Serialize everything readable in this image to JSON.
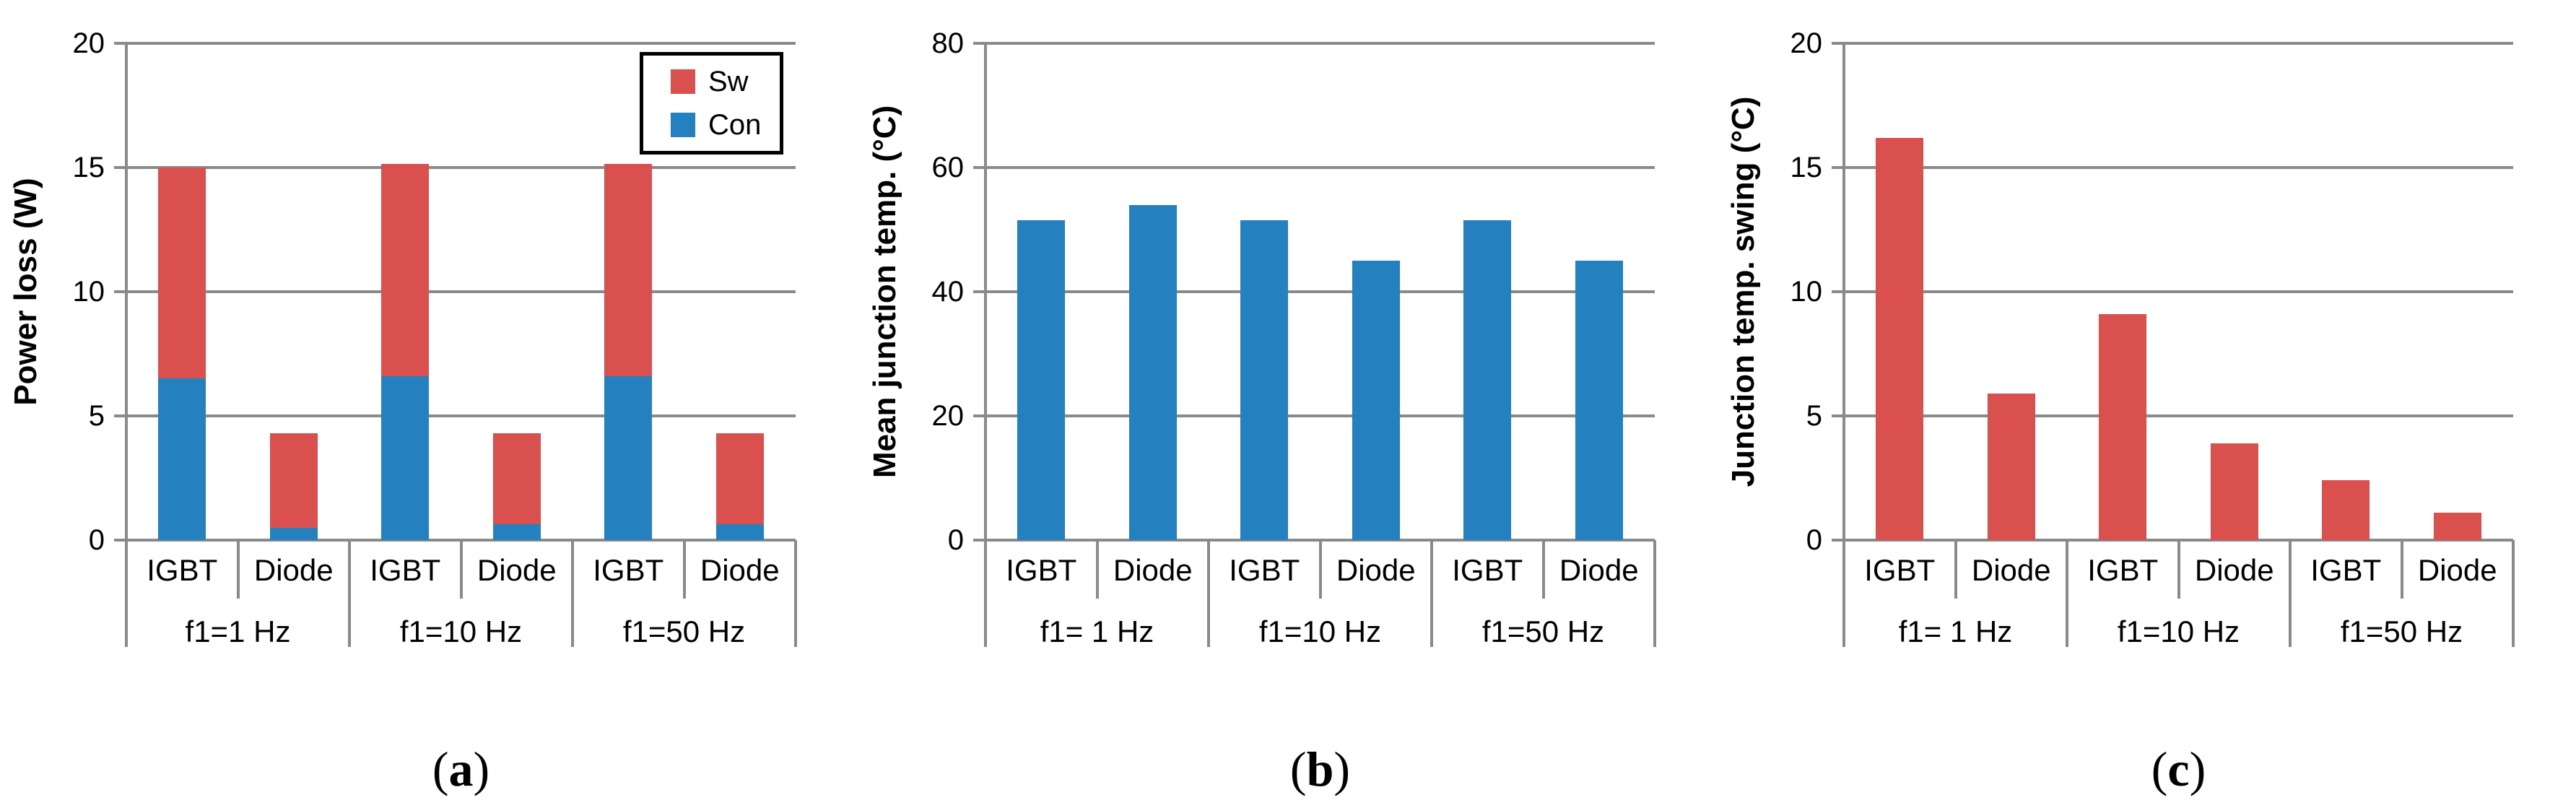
{
  "colors": {
    "sw_red": "#DA504E",
    "con_blue": "#2580C0",
    "grid_gray": "#8A8A8A",
    "text_black": "#000000"
  },
  "chart_data": [
    {
      "id": "a",
      "type": "bar",
      "stacked": true,
      "ylabel": "Power loss (W)",
      "ylim": [
        0,
        20
      ],
      "yticks": [
        0,
        5,
        10,
        15,
        20
      ],
      "grid": true,
      "categories": [
        "IGBT",
        "Diode",
        "IGBT",
        "Diode",
        "IGBT",
        "Diode"
      ],
      "group_labels": [
        "f1=1 Hz",
        "f1=10 Hz",
        "f1=50 Hz"
      ],
      "series": [
        {
          "name": "Con",
          "color_key": "con_blue",
          "values": [
            6.5,
            0.5,
            6.6,
            0.65,
            6.6,
            0.65
          ]
        },
        {
          "name": "Sw",
          "color_key": "sw_red",
          "values": [
            8.5,
            3.8,
            8.55,
            3.65,
            8.55,
            3.65
          ]
        }
      ],
      "legend": {
        "position": "top-right",
        "entries": [
          {
            "label": "Sw",
            "color_key": "sw_red"
          },
          {
            "label": "Con",
            "color_key": "con_blue"
          }
        ]
      },
      "caption": {
        "pre": "(",
        "letter": "a",
        "post": ")"
      }
    },
    {
      "id": "b",
      "type": "bar",
      "stacked": false,
      "ylabel": "Mean junction temp. (°C)",
      "ylim": [
        0,
        80
      ],
      "yticks": [
        0,
        20,
        40,
        60,
        80
      ],
      "grid": true,
      "categories": [
        "IGBT",
        "Diode",
        "IGBT",
        "Diode",
        "IGBT",
        "Diode"
      ],
      "group_labels": [
        "f1= 1 Hz",
        "f1=10 Hz",
        "f1=50 Hz"
      ],
      "series": [
        {
          "name": "Mean junction temp.",
          "color_key": "con_blue",
          "values": [
            51.5,
            54,
            51.5,
            45,
            51.5,
            45
          ]
        }
      ],
      "caption": {
        "pre": "(",
        "letter": "b",
        "post": ")"
      }
    },
    {
      "id": "c",
      "type": "bar",
      "stacked": false,
      "ylabel": "Junction temp. swing (°C)",
      "ylim": [
        0,
        20
      ],
      "yticks": [
        0,
        5,
        10,
        15,
        20
      ],
      "grid": true,
      "categories": [
        "IGBT",
        "Diode",
        "IGBT",
        "Diode",
        "IGBT",
        "Diode"
      ],
      "group_labels": [
        "f1= 1 Hz",
        "f1=10 Hz",
        "f1=50 Hz"
      ],
      "series": [
        {
          "name": "Junction temp. swing",
          "color_key": "sw_red",
          "values": [
            16.2,
            5.9,
            9.1,
            3.9,
            2.4,
            1.1
          ]
        }
      ],
      "caption": {
        "pre": "(",
        "letter": "c",
        "post": ")"
      }
    }
  ]
}
